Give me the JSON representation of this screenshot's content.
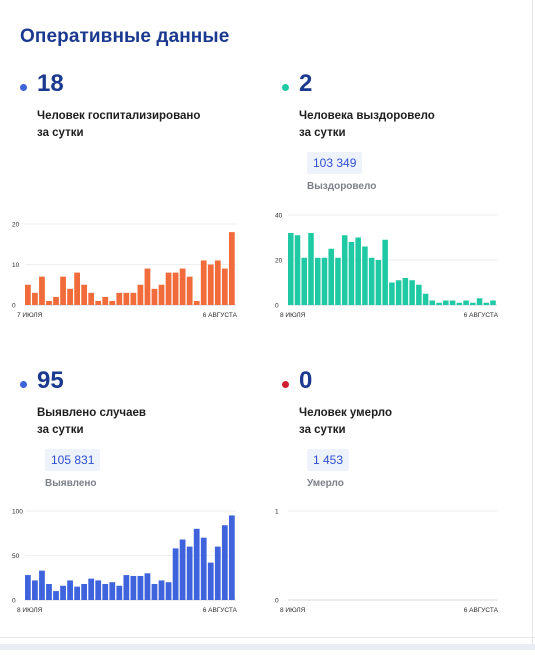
{
  "page": {
    "title": "Оперативные данные"
  },
  "cards": [
    {
      "number": "18",
      "desc_line1": "Человек госпитализировано",
      "desc_line2": "за сутки",
      "dot_color": "#3e63dd",
      "total": "",
      "total_label": ""
    },
    {
      "number": "2",
      "desc_line1": "Человека выздоровело",
      "desc_line2": "за сутки",
      "dot_color": "#1fc9a3",
      "total": "103 349",
      "total_label": "Выздоровело"
    },
    {
      "number": "95",
      "desc_line1": "Выявлено случаев",
      "desc_line2": "за сутки",
      "dot_color": "#3e63dd",
      "total": "105 831",
      "total_label": "Выявлено"
    },
    {
      "number": "0",
      "desc_line1": "Человек умерло",
      "desc_line2": "за сутки",
      "dot_color": "#cf1f2e",
      "total": "1 453",
      "total_label": "Умерло"
    }
  ],
  "chart_data": [
    {
      "type": "bar",
      "color": "#f26b3a",
      "x_start_label": "7 ИЮЛЯ",
      "x_end_label": "6 АВГУСТА",
      "yticks": [
        0,
        10,
        20
      ],
      "ylim": [
        0,
        20
      ],
      "values": [
        5,
        3,
        7,
        1,
        2,
        7,
        4,
        8,
        5,
        3,
        1,
        2,
        1,
        3,
        3,
        3,
        5,
        9,
        4,
        5,
        8,
        8,
        9,
        7,
        1,
        11,
        10,
        11,
        9,
        18
      ]
    },
    {
      "type": "bar",
      "color": "#1fc9a3",
      "x_start_label": "8 ИЮЛЯ",
      "x_end_label": "6 АВГУСТА",
      "yticks": [
        0,
        20,
        40
      ],
      "ylim": [
        0,
        40
      ],
      "values": [
        32,
        31,
        21,
        32,
        21,
        21,
        25,
        21,
        31,
        28,
        30,
        26,
        21,
        20,
        29,
        10,
        11,
        12,
        11,
        9,
        5,
        2,
        1,
        2,
        2,
        1,
        2,
        1,
        3,
        1,
        2
      ]
    },
    {
      "type": "bar",
      "color": "#3e63dd",
      "x_start_label": "8 ИЮЛЯ",
      "x_end_label": "6 АВГУСТА",
      "yticks": [
        0,
        50,
        100
      ],
      "ylim": [
        0,
        100
      ],
      "values": [
        28,
        22,
        33,
        18,
        10,
        16,
        22,
        15,
        18,
        24,
        22,
        18,
        20,
        16,
        28,
        27,
        27,
        30,
        18,
        22,
        20,
        58,
        68,
        60,
        80,
        70,
        42,
        60,
        84,
        95
      ]
    },
    {
      "type": "bar",
      "color": "#cf1f2e",
      "x_start_label": "8 ИЮЛЯ",
      "x_end_label": "6 АВГУСТА",
      "yticks": [
        0,
        1
      ],
      "ylim": [
        0,
        1
      ],
      "values": []
    }
  ]
}
